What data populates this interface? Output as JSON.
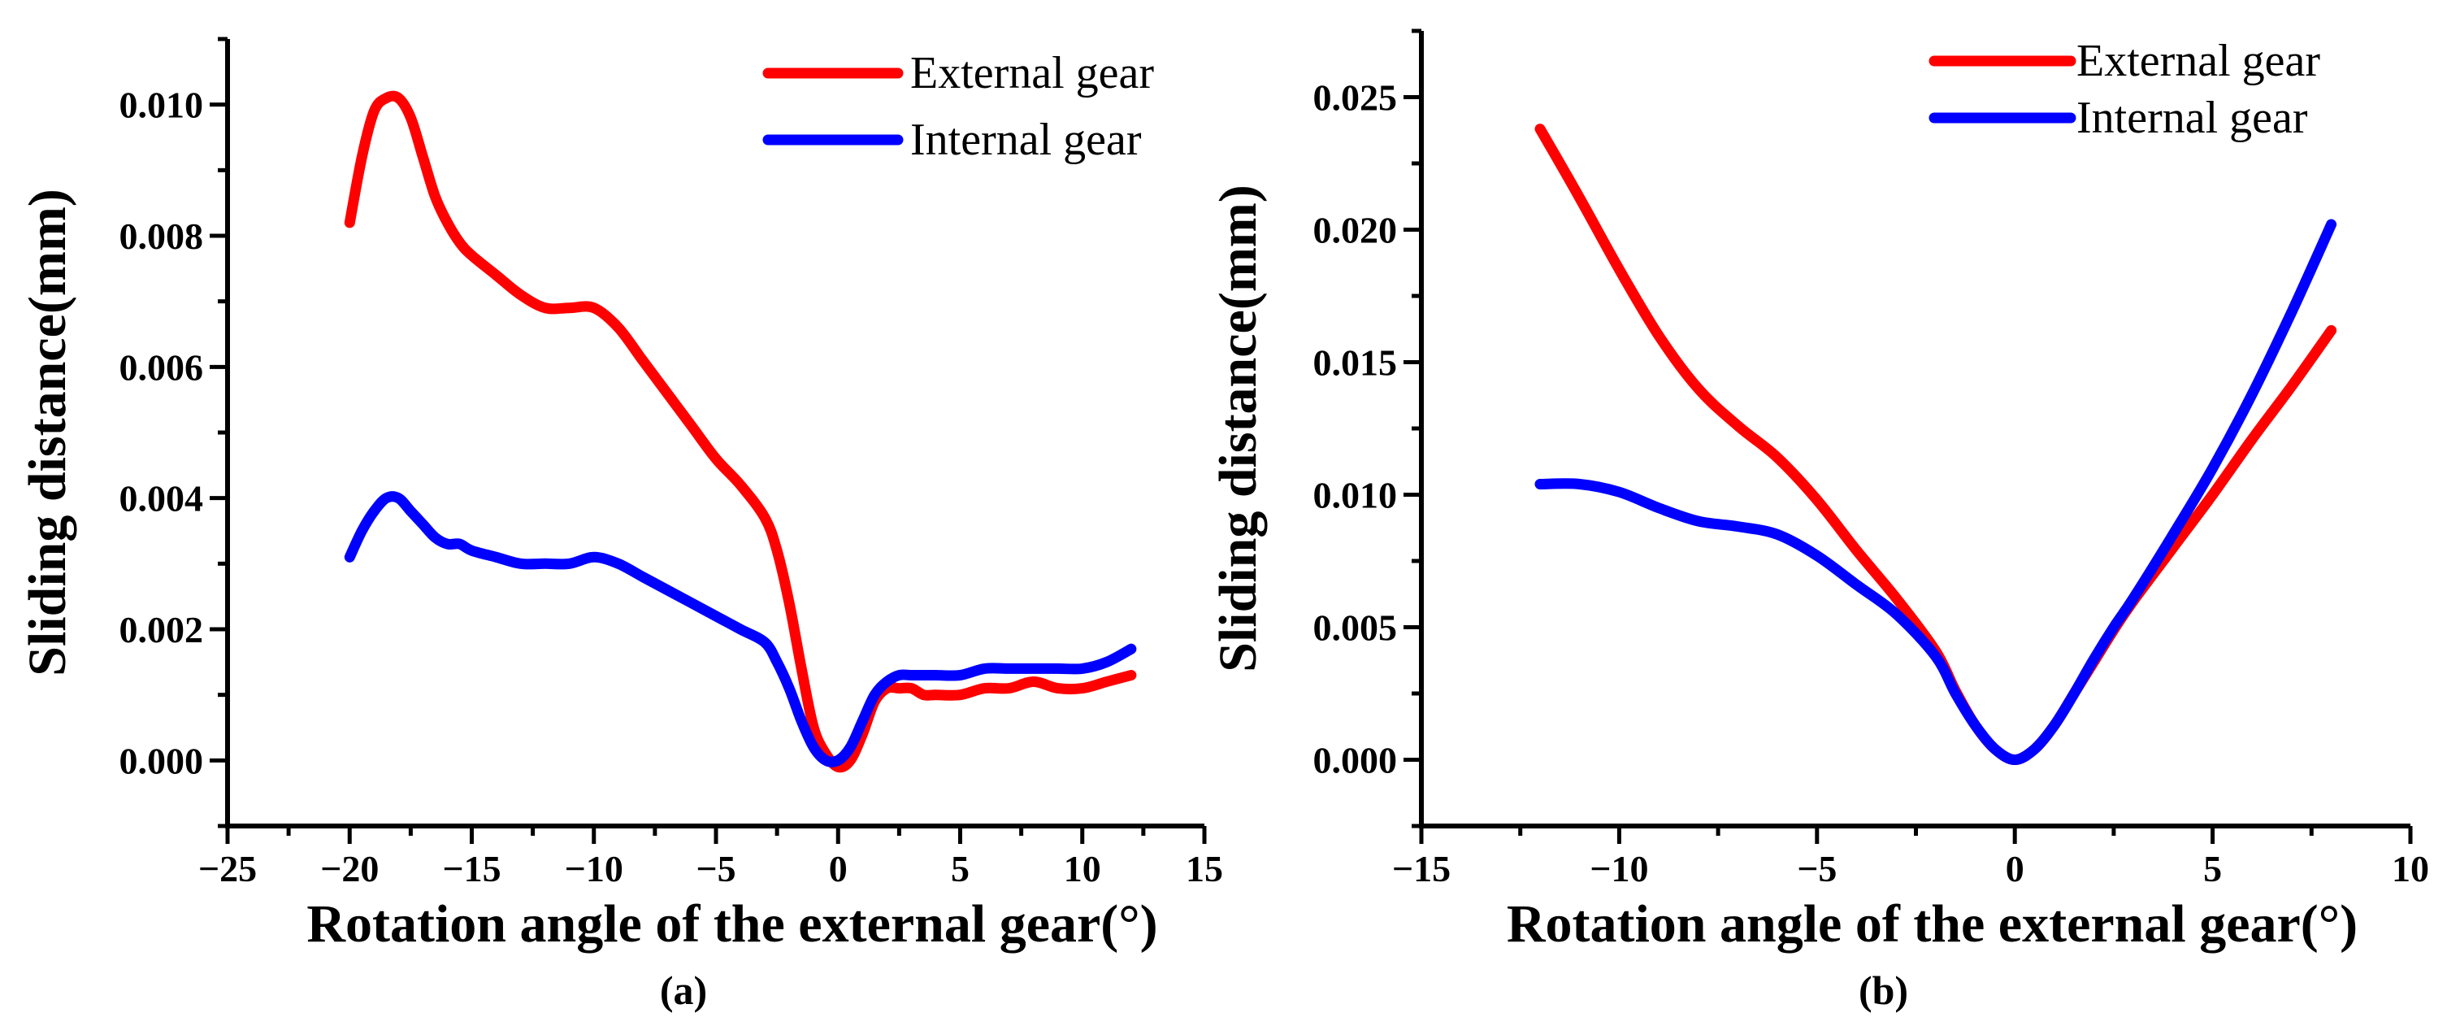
{
  "chart_data": [
    {
      "type": "line",
      "panel_label": "(a)",
      "title": "",
      "xlabel": "Rotation angle of the external gear(°)",
      "ylabel": "Sliding distance(mm)",
      "xlim": [
        -25,
        15
      ],
      "ylim": [
        -0.001,
        0.011
      ],
      "xticks": [
        -25,
        -20,
        -15,
        -10,
        -5,
        0,
        5,
        10,
        15
      ],
      "xtick_labels": [
        "−25",
        "−20",
        "−15",
        "−10",
        "−5",
        "0",
        "5",
        "10",
        "15"
      ],
      "yticks": [
        0.0,
        0.002,
        0.004,
        0.006,
        0.008,
        0.01
      ],
      "ytick_labels": [
        "0.000",
        "0.002",
        "0.004",
        "0.006",
        "0.008",
        "0.010"
      ],
      "grid": false,
      "legend_position": "top-right",
      "series": [
        {
          "name": "External gear",
          "color": "#ff0000",
          "x": [
            -20,
            -19.5,
            -19,
            -18.5,
            -18,
            -17.5,
            -17,
            -16.5,
            -16,
            -15.5,
            -15,
            -14,
            -13,
            -12,
            -11,
            -10,
            -9,
            -8,
            -7,
            -6,
            -5,
            -4,
            -3,
            -2.5,
            -2,
            -1.5,
            -1,
            -0.5,
            0,
            0.5,
            1,
            1.5,
            2,
            2.5,
            3,
            3.5,
            4,
            5,
            6,
            7,
            8,
            9,
            10,
            11,
            12
          ],
          "values": [
            0.0082,
            0.0092,
            0.0099,
            0.0101,
            0.0101,
            0.0098,
            0.0092,
            0.0086,
            0.0082,
            0.0079,
            0.0077,
            0.0074,
            0.0071,
            0.0069,
            0.0069,
            0.0069,
            0.0066,
            0.0061,
            0.0056,
            0.0051,
            0.0046,
            0.0042,
            0.0037,
            0.0032,
            0.0024,
            0.0014,
            0.0005,
            0.0001,
            -0.0001,
            0.0,
            0.0004,
            0.0009,
            0.0011,
            0.0011,
            0.0011,
            0.001,
            0.001,
            0.001,
            0.0011,
            0.0011,
            0.0012,
            0.0011,
            0.0011,
            0.0012,
            0.0013
          ]
        },
        {
          "name": "Internal gear",
          "color": "#0000ff",
          "x": [
            -20,
            -19.5,
            -19,
            -18.5,
            -18,
            -17.5,
            -17,
            -16.5,
            -16,
            -15.5,
            -15,
            -14,
            -13,
            -12,
            -11,
            -10,
            -9,
            -8,
            -7,
            -6,
            -5,
            -4,
            -3,
            -2.5,
            -2,
            -1.5,
            -1,
            -0.5,
            0,
            0.5,
            1,
            1.5,
            2,
            2.5,
            3,
            3.5,
            4,
            5,
            6,
            7,
            8,
            9,
            10,
            11,
            12
          ],
          "values": [
            0.0031,
            0.0035,
            0.0038,
            0.004,
            0.004,
            0.0038,
            0.0036,
            0.0034,
            0.0033,
            0.0033,
            0.0032,
            0.0031,
            0.003,
            0.003,
            0.003,
            0.0031,
            0.003,
            0.0028,
            0.0026,
            0.0024,
            0.0022,
            0.002,
            0.0018,
            0.0015,
            0.0011,
            0.0006,
            0.0002,
            0.0,
            0.0,
            0.0002,
            0.0006,
            0.001,
            0.0012,
            0.0013,
            0.0013,
            0.0013,
            0.0013,
            0.0013,
            0.0014,
            0.0014,
            0.0014,
            0.0014,
            0.0014,
            0.0015,
            0.0017
          ]
        }
      ]
    },
    {
      "type": "line",
      "panel_label": "(b)",
      "title": "",
      "xlabel": "Rotation angle of the external gear(°)",
      "ylabel": "Sliding distance(mm)",
      "xlim": [
        -15,
        10
      ],
      "ylim": [
        -0.0025,
        0.0275
      ],
      "xticks": [
        -15,
        -10,
        -5,
        0,
        5,
        10
      ],
      "xtick_labels": [
        "−15",
        "−10",
        "−5",
        "0",
        "5",
        "10"
      ],
      "yticks": [
        0.0,
        0.005,
        0.01,
        0.015,
        0.02,
        0.025
      ],
      "ytick_labels": [
        "0.000",
        "0.005",
        "0.010",
        "0.015",
        "0.020",
        "0.025"
      ],
      "grid": false,
      "legend_position": "top-right",
      "series": [
        {
          "name": "External gear",
          "color": "#ff0000",
          "x": [
            -12,
            -11,
            -10,
            -9,
            -8,
            -7,
            -6,
            -5,
            -4,
            -3,
            -2,
            -1.5,
            -1,
            -0.5,
            0,
            0.5,
            1,
            1.5,
            2,
            2.5,
            3,
            4,
            5,
            6,
            7,
            8
          ],
          "values": [
            0.0238,
            0.0212,
            0.0185,
            0.016,
            0.014,
            0.0126,
            0.0114,
            0.0098,
            0.0079,
            0.0061,
            0.0041,
            0.0026,
            0.0013,
            0.0004,
            0.0,
            0.0004,
            0.0013,
            0.0025,
            0.0037,
            0.0049,
            0.006,
            0.008,
            0.01,
            0.0121,
            0.0141,
            0.0162
          ]
        },
        {
          "name": "Internal gear",
          "color": "#0000ff",
          "x": [
            -12,
            -11,
            -10,
            -9,
            -8,
            -7,
            -6,
            -5,
            -4,
            -3,
            -2,
            -1.5,
            -1,
            -0.5,
            0,
            0.5,
            1,
            1.5,
            2,
            2.5,
            3,
            4,
            5,
            6,
            7,
            8
          ],
          "values": [
            0.0104,
            0.0104,
            0.0101,
            0.0095,
            0.009,
            0.0088,
            0.0085,
            0.0077,
            0.0066,
            0.0055,
            0.0039,
            0.0025,
            0.0013,
            0.0004,
            0.0,
            0.0004,
            0.0013,
            0.0025,
            0.0038,
            0.005,
            0.0061,
            0.0085,
            0.011,
            0.0138,
            0.0169,
            0.0202
          ]
        }
      ]
    }
  ]
}
